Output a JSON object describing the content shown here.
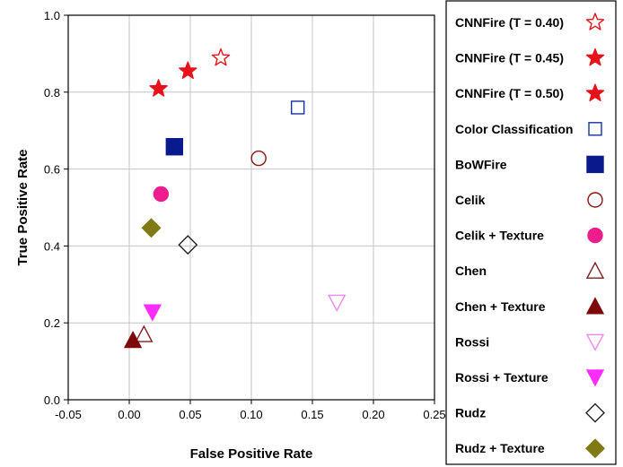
{
  "chart_data": {
    "type": "scatter",
    "title": "",
    "xlabel": "False Positive Rate",
    "ylabel": "True Positive Rate",
    "xlim": [
      -0.05,
      0.25
    ],
    "ylim": [
      0.0,
      1.0
    ],
    "grid": true,
    "legend_position": "right-outside",
    "x_ticks": [
      "-0.05",
      "0.00",
      "0.05",
      "0.10",
      "0.15",
      "0.20",
      "0.25"
    ],
    "y_ticks": [
      "0.0",
      "0.2",
      "0.4",
      "0.6",
      "0.8",
      "1.0"
    ],
    "series": [
      {
        "name": "CNNFire (T = 0.40)",
        "marker": "star-open",
        "color": "#e8111b",
        "x": 0.075,
        "y": 0.889
      },
      {
        "name": "CNNFire (T = 0.45)",
        "marker": "star-filled",
        "color": "#e8111b",
        "x": 0.048,
        "y": 0.855
      },
      {
        "name": "CNNFire (T = 0.50)",
        "marker": "star-shaded",
        "color": "#e8111b",
        "x": 0.024,
        "y": 0.809
      },
      {
        "name": "Color Classification",
        "marker": "square-open",
        "color": "#1432a0",
        "x": 0.138,
        "y": 0.76
      },
      {
        "name": "BoWFire",
        "marker": "square-filled",
        "color": "#0a1a8c",
        "x": 0.037,
        "y": 0.658
      },
      {
        "name": "Celik",
        "marker": "circle-open",
        "color": "#8c1414",
        "x": 0.106,
        "y": 0.628
      },
      {
        "name": "Celik + Texture",
        "marker": "circle-filled",
        "color": "#ee1c8c",
        "x": 0.026,
        "y": 0.535
      },
      {
        "name": "Chen",
        "marker": "triangle-open",
        "color": "#7a1e1e",
        "x": 0.012,
        "y": 0.17
      },
      {
        "name": "Chen + Texture",
        "marker": "triangle-filled",
        "color": "#7d0a0a",
        "x": 0.003,
        "y": 0.155
      },
      {
        "name": "Rossi",
        "marker": "triangle-down-open",
        "color": "#ee88ee",
        "x": 0.17,
        "y": 0.253
      },
      {
        "name": "Rossi + Texture",
        "marker": "triangle-down-filled",
        "color": "#ff2cff",
        "x": 0.019,
        "y": 0.228
      },
      {
        "name": "Rudz",
        "marker": "diamond-open",
        "color": "#222222",
        "x": 0.048,
        "y": 0.403
      },
      {
        "name": "Rudz + Texture",
        "marker": "diamond-filled",
        "color": "#807a14",
        "x": 0.018,
        "y": 0.447
      }
    ]
  }
}
